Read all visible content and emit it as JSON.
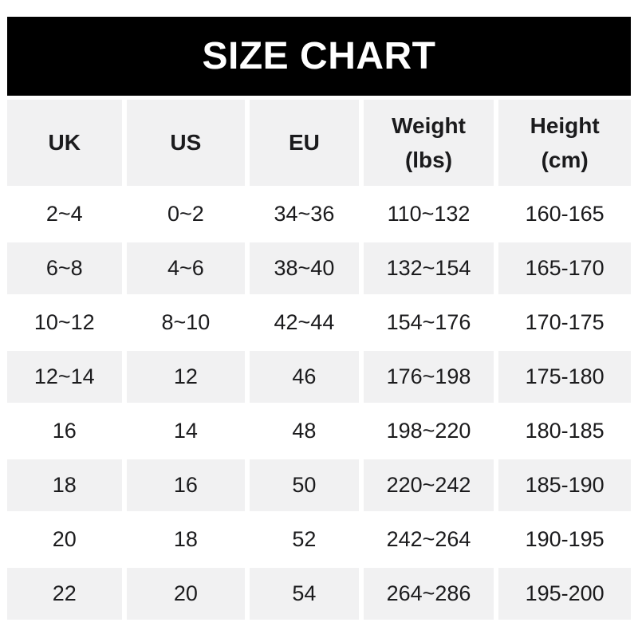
{
  "title": "SIZE CHART",
  "colors": {
    "banner_bg": "#000000",
    "banner_text": "#ffffff",
    "cell_gray": "#f1f1f2",
    "text": "#1b1b1d"
  },
  "chart_data": {
    "type": "table",
    "title": "SIZE CHART",
    "columns": [
      "UK",
      "US",
      "EU",
      "Weight (lbs)",
      "Height (cm)"
    ],
    "header_lines": [
      [
        "UK"
      ],
      [
        "US"
      ],
      [
        "EU"
      ],
      [
        "Weight",
        "(lbs)"
      ],
      [
        "Height",
        "(cm)"
      ]
    ],
    "rows": [
      [
        "2~4",
        "0~2",
        "34~36",
        "110~132",
        "160-165"
      ],
      [
        "6~8",
        "4~6",
        "38~40",
        "132~154",
        "165-170"
      ],
      [
        "10~12",
        "8~10",
        "42~44",
        "154~176",
        "170-175"
      ],
      [
        "12~14",
        "12",
        "46",
        "176~198",
        "175-180"
      ],
      [
        "16",
        "14",
        "48",
        "198~220",
        "180-185"
      ],
      [
        "18",
        "16",
        "50",
        "220~242",
        "185-190"
      ],
      [
        "20",
        "18",
        "52",
        "242~264",
        "190-195"
      ],
      [
        "22",
        "20",
        "54",
        "264~286",
        "195-200"
      ]
    ],
    "layout": {
      "row_striping": "header and even data rows gray, odd data rows white",
      "grid": "off"
    }
  }
}
